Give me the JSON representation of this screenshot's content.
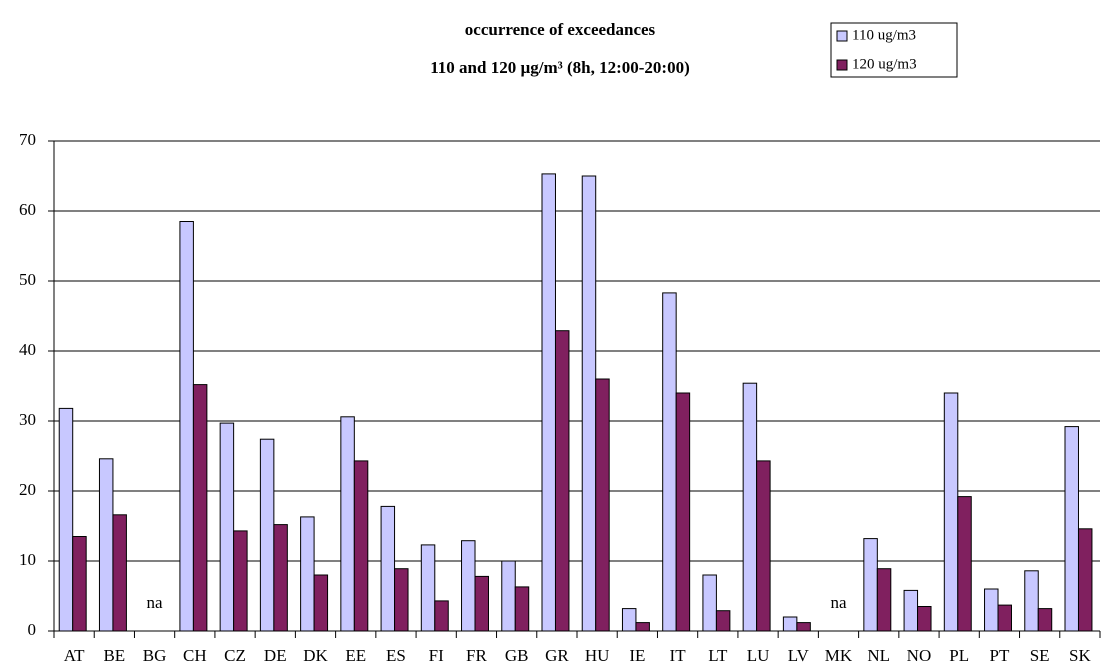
{
  "chart_data": {
    "type": "bar",
    "title": "occurrence of exceedances",
    "subtitle": "110 and 120 µg/m³ (8h, 12:00-20:00)",
    "categories": [
      "AT",
      "BE",
      "BG",
      "CH",
      "CZ",
      "DE",
      "DK",
      "EE",
      "ES",
      "FI",
      "FR",
      "GB",
      "GR",
      "HU",
      "IE",
      "IT",
      "LT",
      "LU",
      "LV",
      "MK",
      "NL",
      "NO",
      "PL",
      "PT",
      "SE",
      "SK"
    ],
    "series": [
      {
        "name": "110 ug/m3",
        "color": "#c8c8ff",
        "values": [
          31.8,
          24.6,
          null,
          58.5,
          29.7,
          27.4,
          16.3,
          30.6,
          17.8,
          12.3,
          12.9,
          10.0,
          65.3,
          65.0,
          3.2,
          48.3,
          8.0,
          35.4,
          2.0,
          null,
          13.2,
          5.8,
          34.0,
          6.0,
          8.6,
          29.2
        ]
      },
      {
        "name": "120 ug/m3",
        "color": "#80205f",
        "values": [
          13.5,
          16.6,
          null,
          35.2,
          14.3,
          15.2,
          8.0,
          24.3,
          8.9,
          4.3,
          7.8,
          6.3,
          42.9,
          36.0,
          1.2,
          34.0,
          2.9,
          24.3,
          1.2,
          null,
          8.9,
          3.5,
          19.2,
          3.7,
          3.2,
          14.6
        ]
      }
    ],
    "missing_label": "na",
    "ylim": [
      0,
      70
    ],
    "yticks": [
      0,
      10,
      20,
      30,
      40,
      50,
      60,
      70
    ],
    "grid": true,
    "legend": "top-right"
  }
}
